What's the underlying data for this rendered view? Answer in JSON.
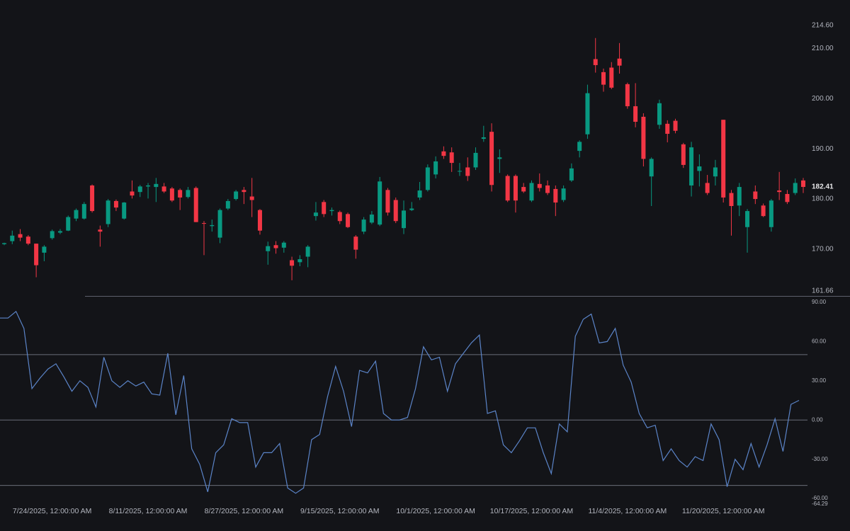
{
  "chart_data": [
    {
      "type": "candlestick",
      "categories": [
        null,
        null,
        null,
        null,
        null,
        null,
        "7/24/2025, 12:00:00 AM",
        null,
        null,
        null,
        null,
        null,
        null,
        null,
        null,
        null,
        null,
        null,
        "8/11/2025, 12:00:00 AM",
        null,
        null,
        null,
        null,
        null,
        null,
        null,
        null,
        null,
        null,
        null,
        "8/27/2025, 12:00:00 AM",
        null,
        null,
        null,
        null,
        null,
        null,
        null,
        null,
        null,
        null,
        null,
        "9/15/2025, 12:00:00 AM",
        null,
        null,
        null,
        null,
        null,
        null,
        null,
        null,
        null,
        null,
        null,
        "10/1/2025, 12:00:00 AM",
        null,
        null,
        null,
        null,
        null,
        null,
        null,
        null,
        null,
        null,
        null,
        "10/17/2025, 12:00:00 AM",
        null,
        null,
        null,
        null,
        null,
        null,
        null,
        null,
        null,
        null,
        null,
        "11/4/2025, 12:00:00 AM",
        null,
        null,
        null,
        null,
        null,
        null,
        null,
        null,
        null,
        null,
        null,
        "11/20/2025, 12:00:00 AM",
        null,
        null,
        null,
        null,
        null,
        null,
        null,
        null,
        null,
        null
      ],
      "open": [
        171.0,
        171.6,
        173.0,
        172.5,
        171.1,
        169.3,
        172.2,
        173.3,
        173.7,
        176.1,
        176.1,
        182.7,
        173.9,
        175.0,
        179.6,
        176.1,
        181.5,
        181.4,
        182.5,
        182.4,
        182.5,
        182.1,
        181.8,
        180.4,
        182.2,
        175.2,
        174.6,
        172.3,
        178.1,
        180.0,
        181.8,
        180.5,
        177.8,
        169.6,
        170.8,
        170.3,
        167.8,
        167.4,
        168.5,
        176.6,
        179.4,
        177.6,
        177.4,
        177.0,
        172.5,
        173.5,
        175.3,
        174.9,
        181.8,
        179.8,
        174.2,
        177.8,
        180.3,
        181.8,
        184.9,
        189.5,
        189.3,
        185.5,
        186.3,
        186.3,
        192.0,
        193.4,
        188.0,
        184.6,
        184.6,
        182.4,
        179.7,
        183.0,
        182.7,
        182.0,
        179.8,
        183.7,
        189.6,
        192.9,
        207.9,
        205.3,
        206.2,
        208.0,
        202.9,
        198.5,
        196.4,
        184.5,
        194.8,
        195.0,
        195.6,
        190.9,
        182.7,
        185.6,
        183.2,
        184.5,
        195.8,
        181.2,
        178.7,
        174.4,
        181.5,
        178.7,
        174.4,
        181.7,
        181.0,
        181.2,
        183.7
      ],
      "high": [
        171.3,
        173.7,
        174.0,
        172.8,
        171.1,
        170.8,
        173.9,
        174.0,
        176.7,
        178.1,
        179.4,
        182.9,
        174.7,
        180.0,
        179.9,
        179.4,
        183.7,
        182.8,
        183.2,
        184.2,
        183.2,
        182.4,
        182.1,
        182.4,
        182.5,
        175.6,
        175.9,
        178.1,
        180.0,
        181.8,
        182.4,
        184.2,
        178.0,
        171.5,
        171.6,
        171.6,
        168.5,
        168.8,
        170.8,
        179.4,
        179.8,
        178.3,
        177.7,
        177.3,
        172.8,
        176.4,
        177.6,
        184.4,
        182.2,
        180.3,
        179.7,
        179.4,
        183.4,
        186.9,
        188.5,
        190.5,
        190.3,
        187.2,
        188.3,
        190.3,
        194.6,
        195.1,
        189.9,
        184.9,
        184.9,
        183.2,
        183.7,
        185.1,
        183.7,
        182.7,
        182.7,
        187.1,
        191.7,
        202.8,
        212.1,
        206.0,
        207.3,
        211.1,
        203.2,
        203.1,
        197.1,
        188.3,
        199.8,
        195.7,
        196.0,
        191.2,
        191.4,
        188.9,
        184.8,
        187.8,
        195.8,
        181.8,
        183.2,
        178.0,
        182.7,
        179.1,
        180.0,
        185.4,
        181.8,
        184.1,
        184.2
      ],
      "low": [
        170.8,
        171.0,
        171.6,
        170.8,
        164.4,
        167.6,
        171.9,
        173.0,
        173.6,
        175.6,
        175.9,
        177.3,
        170.5,
        174.4,
        177.6,
        175.9,
        180.1,
        180.4,
        180.1,
        179.4,
        181.2,
        179.4,
        177.8,
        180.1,
        175.4,
        168.8,
        173.5,
        171.2,
        177.8,
        179.7,
        179.0,
        176.4,
        172.9,
        166.9,
        169.1,
        169.3,
        163.8,
        166.6,
        166.4,
        175.7,
        176.4,
        176.7,
        175.0,
        174.2,
        168.1,
        173.0,
        175.0,
        174.6,
        176.7,
        175.2,
        173.0,
        177.6,
        179.8,
        181.5,
        184.1,
        188.0,
        185.4,
        184.6,
        183.6,
        185.8,
        191.4,
        181.5,
        185.2,
        179.4,
        177.3,
        181.2,
        179.4,
        181.5,
        180.8,
        176.6,
        179.4,
        183.4,
        188.3,
        192.0,
        205.2,
        201.4,
        201.9,
        205.0,
        198.0,
        194.3,
        186.5,
        178.6,
        194.0,
        191.3,
        193.1,
        186.2,
        180.5,
        182.5,
        180.8,
        182.7,
        179.3,
        172.7,
        176.6,
        169.3,
        179.0,
        176.4,
        173.5,
        179.8,
        179.0,
        180.8,
        181.2
      ],
      "close": [
        171.2,
        172.7,
        172.3,
        171.1,
        166.8,
        170.5,
        173.6,
        173.6,
        176.4,
        177.8,
        179.0,
        177.6,
        173.5,
        179.7,
        178.3,
        179.3,
        180.7,
        182.5,
        182.7,
        183.0,
        181.5,
        179.7,
        180.3,
        181.8,
        175.4,
        175.1,
        174.8,
        177.8,
        179.6,
        181.5,
        181.4,
        179.8,
        173.7,
        170.6,
        170.2,
        171.3,
        166.7,
        168.0,
        170.5,
        177.3,
        177.0,
        177.8,
        175.6,
        174.4,
        169.9,
        175.9,
        176.9,
        183.5,
        177.3,
        175.6,
        177.7,
        178.1,
        181.7,
        186.3,
        187.5,
        188.6,
        187.2,
        185.6,
        184.6,
        189.2,
        192.3,
        182.8,
        188.3,
        179.7,
        179.7,
        181.5,
        183.2,
        182.2,
        181.2,
        179.3,
        182.1,
        186.1,
        191.4,
        201.1,
        206.7,
        202.8,
        202.2,
        206.6,
        198.5,
        195.4,
        188.0,
        188.0,
        199.1,
        193.0,
        193.6,
        186.8,
        190.3,
        186.5,
        181.2,
        186.3,
        180.3,
        178.6,
        182.4,
        177.6,
        180.0,
        176.6,
        179.7,
        181.4,
        179.4,
        183.2,
        182.41
      ],
      "last_label": "182.41",
      "up_color": "#089981",
      "down_color": "#f23645",
      "ylim": [
        161.66,
        214.6
      ],
      "yticks": [
        {
          "value": 214.6,
          "label": "214.60"
        },
        {
          "value": 210,
          "label": "210.00"
        },
        {
          "value": 200,
          "label": "200.00"
        },
        {
          "value": 190,
          "label": "190.00"
        },
        {
          "value": 180,
          "label": "180.00"
        },
        {
          "value": 170,
          "label": "170.00"
        },
        {
          "value": 161.66,
          "label": "161.66"
        }
      ]
    },
    {
      "type": "line",
      "values": [
        78,
        78,
        83,
        70,
        24,
        32,
        39,
        43,
        33,
        22,
        30,
        25,
        10,
        48,
        30,
        25,
        30,
        26,
        29,
        20,
        19,
        51,
        4,
        34,
        -22,
        -34,
        -55,
        -25,
        -19,
        1,
        -2,
        -2,
        -36,
        -25,
        -25,
        -18,
        -52,
        -56,
        -52,
        -15,
        -11,
        18,
        41,
        22,
        -5,
        38,
        36,
        45,
        5,
        0,
        0,
        2,
        24,
        56,
        46,
        48,
        22,
        43,
        51,
        59,
        65,
        5,
        7,
        -19,
        -25,
        -16,
        -6,
        -6,
        -25,
        -41,
        -3,
        -9,
        64,
        77,
        81,
        59,
        60,
        70,
        42,
        29,
        5,
        -6,
        -4,
        -31,
        -22,
        -31,
        -36,
        -28,
        -31,
        -3,
        -15,
        -51,
        -30,
        -38,
        -18,
        -36,
        -19,
        1,
        -24,
        12,
        15
      ],
      "color": "#5b84c8",
      "levels": [
        50,
        0,
        -50
      ],
      "ylim": [
        -64.29,
        90
      ],
      "yticks": [
        {
          "value": 90,
          "label": "90.00"
        },
        {
          "value": 60,
          "label": "60.00"
        },
        {
          "value": 30,
          "label": "30.00"
        },
        {
          "value": 0,
          "label": "0.00"
        },
        {
          "value": -30,
          "label": "-30.00"
        },
        {
          "value": -60,
          "label": "-60.00"
        },
        {
          "value": -64.29,
          "label": "-64.29"
        }
      ]
    }
  ]
}
